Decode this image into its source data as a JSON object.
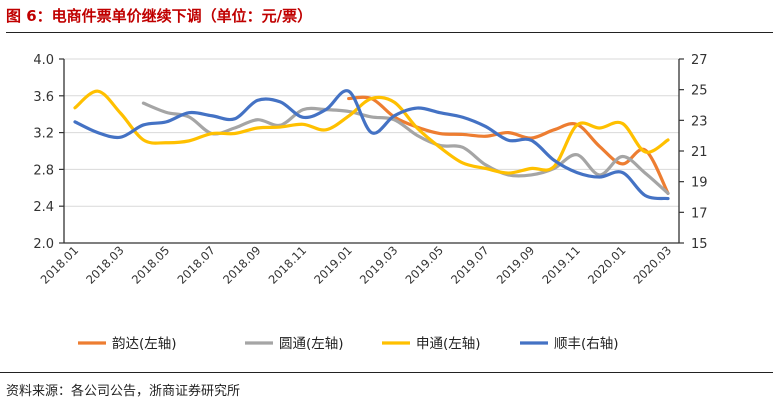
{
  "title": "图 6：电商件票单价继续下调（单位：元/票）",
  "source": "资料来源：各公司公告，浙商证券研究所",
  "chart_data": {
    "type": "line",
    "title": "图 6：电商件票单价继续下调（单位：元/票）",
    "grid": true,
    "legend_position": "bottom",
    "x": [
      "2018.01",
      "2018.02",
      "2018.03",
      "2018.04",
      "2018.05",
      "2018.06",
      "2018.07",
      "2018.08",
      "2018.09",
      "2018.10",
      "2018.11",
      "2018.12",
      "2019.01",
      "2019.02",
      "2019.03",
      "2019.04",
      "2019.05",
      "2019.06",
      "2019.07",
      "2019.08",
      "2019.09",
      "2019.10",
      "2019.11",
      "2019.12",
      "2020.01",
      "2020.02",
      "2020.03"
    ],
    "x_tick_labels": [
      "2018.01",
      "2018.03",
      "2018.05",
      "2018.07",
      "2018.09",
      "2018.11",
      "2019.01",
      "2019.03",
      "2019.05",
      "2019.07",
      "2019.09",
      "2019.11",
      "2020.01",
      "2020.03"
    ],
    "left_axis": {
      "ylim": [
        2.0,
        4.0
      ],
      "ticks": [
        "2.0",
        "2.4",
        "2.8",
        "3.2",
        "3.6",
        "4.0"
      ]
    },
    "right_axis": {
      "ylim": [
        15,
        27
      ],
      "ticks": [
        "15",
        "17",
        "19",
        "21",
        "23",
        "25",
        "27"
      ]
    },
    "series": [
      {
        "name": "韵达(左轴)",
        "axis": "left",
        "color": "#ED7D31",
        "values": [
          null,
          null,
          null,
          null,
          null,
          null,
          null,
          null,
          null,
          null,
          null,
          null,
          3.57,
          3.57,
          3.37,
          3.26,
          3.19,
          3.18,
          3.16,
          3.2,
          3.14,
          3.23,
          3.29,
          3.05,
          2.86,
          3.01,
          2.54
        ]
      },
      {
        "name": "圆通(左轴)",
        "axis": "left",
        "color": "#A5A5A5",
        "values": [
          null,
          null,
          null,
          3.52,
          3.42,
          3.37,
          3.19,
          3.25,
          3.34,
          3.28,
          3.45,
          3.45,
          3.43,
          3.37,
          3.34,
          3.17,
          3.06,
          3.04,
          2.85,
          2.74,
          2.74,
          2.81,
          2.96,
          2.74,
          2.94,
          2.76,
          2.54
        ]
      },
      {
        "name": "申通(左轴)",
        "axis": "left",
        "color": "#FFC000",
        "values": [
          3.47,
          3.65,
          3.41,
          3.12,
          3.09,
          3.11,
          3.19,
          3.19,
          3.25,
          3.26,
          3.29,
          3.23,
          3.38,
          3.57,
          3.53,
          3.25,
          3.04,
          2.87,
          2.81,
          2.76,
          2.81,
          2.83,
          3.28,
          3.25,
          3.3,
          2.99,
          3.12
        ]
      },
      {
        "name": "顺丰(右轴)",
        "axis": "right",
        "color": "#4472C4",
        "values": [
          22.9,
          22.2,
          21.9,
          22.7,
          22.9,
          23.5,
          23.3,
          23.1,
          24.3,
          24.2,
          23.2,
          23.7,
          24.9,
          22.2,
          23.3,
          23.8,
          23.5,
          23.2,
          22.6,
          21.7,
          21.7,
          20.4,
          19.6,
          19.3,
          19.6,
          18.1,
          17.9
        ]
      }
    ]
  }
}
